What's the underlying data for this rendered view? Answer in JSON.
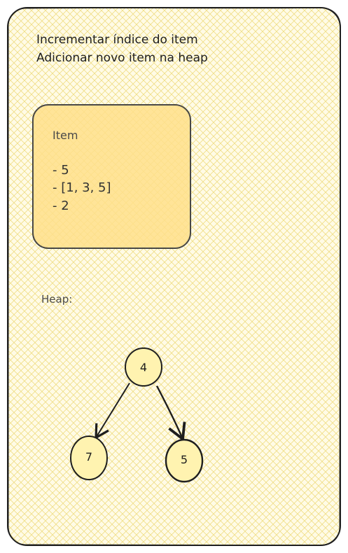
{
  "notes": {
    "line1": "Incrementar índice do item",
    "line2": "Adicionar novo item na heap"
  },
  "item_card": {
    "title": "Item",
    "lines": [
      "- 5",
      "- [1, 3, 5]",
      "- 2"
    ]
  },
  "heap": {
    "label": "Heap:",
    "root": "4",
    "left_child": "7",
    "right_child": "5"
  },
  "colors": {
    "background_fill": "#fff9db",
    "hatch": "#f2e08a",
    "card_fill": "#ffe08a",
    "node_fill": "#fff3b0",
    "stroke": "#1e1e1e"
  }
}
